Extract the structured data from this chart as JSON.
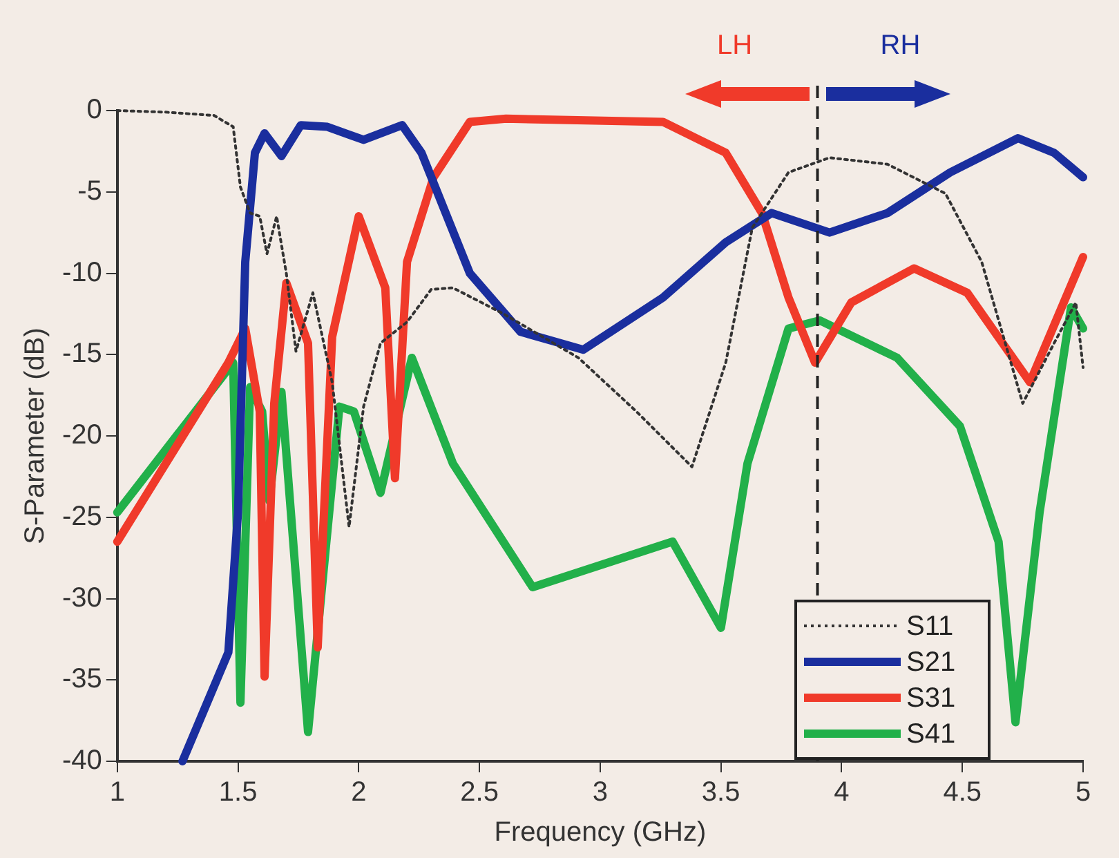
{
  "chart_data": {
    "type": "line",
    "xlabel": "Frequency (GHz)",
    "ylabel": "S-Parameter (dB)",
    "xlim": [
      1,
      5
    ],
    "xticks": [
      1,
      1.5,
      2,
      2.5,
      3,
      3.5,
      4,
      4.5,
      5
    ],
    "ylim": [
      -40,
      0
    ],
    "yticks": [
      0,
      -5,
      -10,
      -15,
      -20,
      -25,
      -30,
      -35,
      -40
    ],
    "grid": false,
    "legend": "bottom right",
    "marker": "none",
    "ref_lines": [
      {
        "axis": "x",
        "value": 3.9,
        "color": "#222222",
        "line_style": "dashed"
      }
    ],
    "annotations": [
      "LH",
      "RH"
    ],
    "series": [
      {
        "name": "S11",
        "color": "#333333",
        "line_style": "dotted",
        "x": [
          1,
          1.2,
          1.4,
          1.48,
          1.51,
          1.55,
          1.59,
          1.62,
          1.66,
          1.7,
          1.74,
          1.81,
          1.89,
          1.96,
          2.02,
          2.09,
          2.2,
          2.3,
          2.39,
          2.6,
          2.91,
          3.15,
          3.38,
          3.52,
          3.63,
          3.78,
          3.95,
          4.19,
          4.43,
          4.58,
          4.75,
          4.88,
          4.97,
          5
        ],
        "values": [
          0,
          -0.1,
          -0.3,
          -1,
          -4.7,
          -6.3,
          -6.5,
          -8.8,
          -6.5,
          -10,
          -14.8,
          -11.2,
          -16.7,
          -25.6,
          -18.2,
          -14.3,
          -13,
          -11,
          -10.9,
          -12.5,
          -15.2,
          -18.5,
          -21.9,
          -15.5,
          -7.2,
          -3.8,
          -2.9,
          -3.3,
          -5.1,
          -9.3,
          -18,
          -14.3,
          -11.8,
          -15.8
        ]
      },
      {
        "name": "S21",
        "color": "#1a2e9e",
        "x": [
          1.27,
          1.46,
          1.5,
          1.53,
          1.57,
          1.61,
          1.68,
          1.76,
          1.87,
          2.02,
          2.18,
          2.26,
          2.46,
          2.67,
          2.93,
          3.26,
          3.52,
          3.71,
          3.95,
          4.19,
          4.45,
          4.73,
          4.88,
          5
        ],
        "values": [
          -40,
          -33.3,
          -24.7,
          -9.3,
          -2.6,
          -1.4,
          -2.8,
          -0.9,
          -1,
          -1.8,
          -0.9,
          -2.6,
          -10,
          -13.6,
          -14.7,
          -11.5,
          -8.1,
          -6.3,
          -7.5,
          -6.3,
          -3.8,
          -1.7,
          -2.6,
          -4.1
        ]
      },
      {
        "name": "S31",
        "color": "#f03a2a",
        "x": [
          1,
          1.46,
          1.53,
          1.59,
          1.61,
          1.65,
          1.7,
          1.79,
          1.83,
          1.89,
          2,
          2.11,
          2.15,
          2.2,
          2.31,
          2.46,
          2.61,
          3.26,
          3.52,
          3.67,
          3.78,
          3.89,
          4.04,
          4.3,
          4.52,
          4.78,
          5
        ],
        "values": [
          -26.5,
          -15.5,
          -13.4,
          -18.5,
          -34.8,
          -18,
          -10.6,
          -14.3,
          -33,
          -13.9,
          -6.5,
          -10.9,
          -22.6,
          -9.3,
          -4.1,
          -0.7,
          -0.5,
          -0.7,
          -2.6,
          -6.3,
          -11.5,
          -15.5,
          -11.8,
          -9.7,
          -11.2,
          -16.7,
          -9
        ]
      },
      {
        "name": "S41",
        "color": "#22b04a",
        "x": [
          1,
          1.48,
          1.51,
          1.55,
          1.6,
          1.63,
          1.68,
          1.79,
          1.92,
          1.98,
          2.09,
          2.22,
          2.39,
          2.72,
          3.3,
          3.5,
          3.61,
          3.78,
          3.91,
          4.23,
          4.49,
          4.65,
          4.72,
          4.82,
          4.95,
          5
        ],
        "values": [
          -24.7,
          -15.5,
          -36.4,
          -17,
          -18.5,
          -24,
          -17.3,
          -38.2,
          -18.2,
          -18.5,
          -23.5,
          -15.2,
          -21.7,
          -29.3,
          -26.5,
          -31.8,
          -21.7,
          -13.4,
          -12.9,
          -15.2,
          -19.4,
          -26.5,
          -37.6,
          -24.7,
          -12.1,
          -13.4
        ]
      }
    ]
  }
}
